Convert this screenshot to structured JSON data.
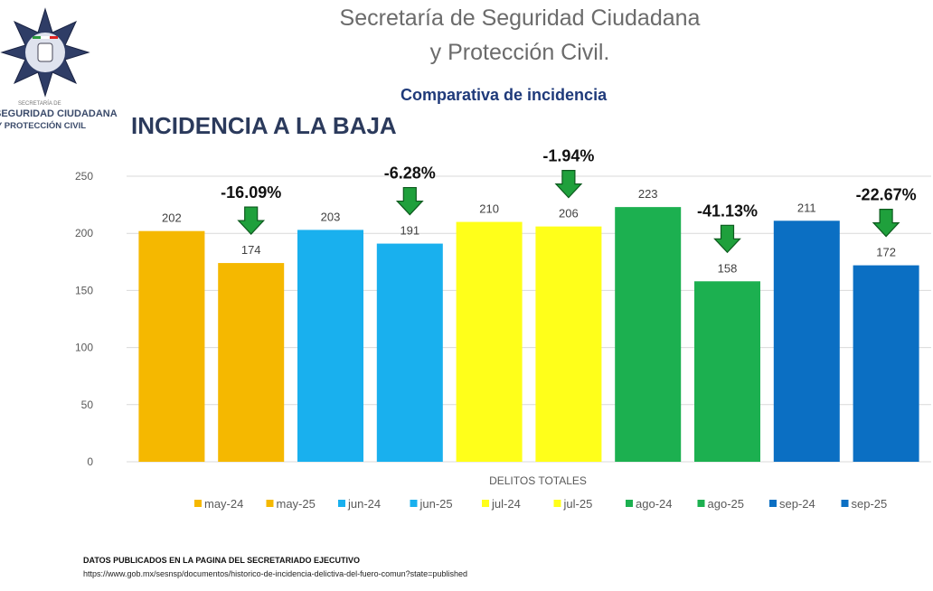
{
  "header": {
    "title_line1": "Secretaría de Seguridad Ciudadana",
    "title_line2": "y Protección Civil.",
    "subtitle": "Comparativa de incidencia",
    "heading": "INCIDENCIA A LA BAJA",
    "logo_text": [
      "SECRETARÍA DE",
      "SEGURIDAD CIUDADANA",
      "Y PROTECCIÓN CIVIL"
    ]
  },
  "footer": {
    "source_title": "DATOS PUBLICADOS EN LA PAGINA DEL SECRETARIADO EJECUTIVO",
    "source_url": "https://www.gob.mx/sesnsp/documentos/historico-de-incidencia-delictiva-del-fuero-comun?state=published"
  },
  "chart_data": {
    "type": "bar",
    "title": "Comparativa de incidencia",
    "xlabel": "DELITOS TOTALES",
    "ylabel": "",
    "ylim": [
      0,
      250
    ],
    "yticks": [
      0,
      50,
      100,
      150,
      200,
      250
    ],
    "grid": true,
    "legend_position": "bottom",
    "categories": [
      "may-24",
      "may-25",
      "jun-24",
      "jun-25",
      "jul-24",
      "jul-25",
      "ago-24",
      "ago-25",
      "sep-24",
      "sep-25"
    ],
    "values": [
      202,
      174,
      203,
      191,
      210,
      206,
      223,
      158,
      211,
      172
    ],
    "colors": [
      "#f5b800",
      "#f5b800",
      "#19b0ee",
      "#19b0ee",
      "#ffff1a",
      "#ffff1a",
      "#1cb050",
      "#1cb050",
      "#0b6fc3",
      "#0b6fc3"
    ],
    "annotations": [
      {
        "bar": "may-25",
        "text": "-16.09%",
        "icon": "down-arrow-icon"
      },
      {
        "bar": "jun-25",
        "text": "-6.28%",
        "icon": "down-arrow-icon"
      },
      {
        "bar": "jul-25",
        "text": "-1.94%",
        "icon": "down-arrow-icon"
      },
      {
        "bar": "ago-25",
        "text": "-41.13%",
        "icon": "down-arrow-icon"
      },
      {
        "bar": "sep-25",
        "text": "-22.67%",
        "icon": "down-arrow-icon"
      }
    ],
    "arrow_color": "#1fa03c"
  }
}
